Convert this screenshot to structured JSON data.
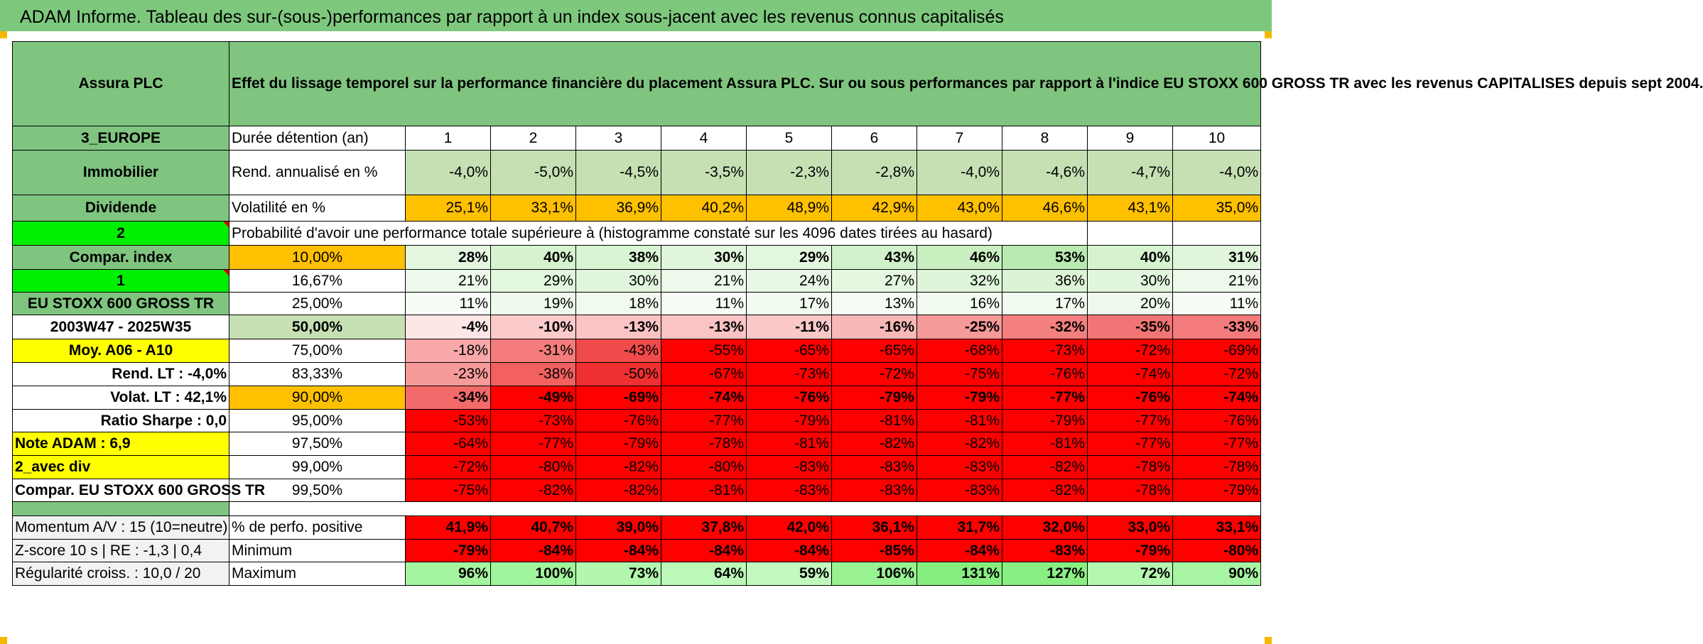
{
  "title": "ADAM Informe. Tableau des sur-(sous-)performances par rapport à un index sous-jacent avec les revenus connus capitalisés",
  "header": {
    "asset": "Assura PLC",
    "description": "Effet du lissage temporel sur la performance financière du placement Assura PLC. Sur ou sous performances par rapport à l'indice EU STOXX 600 GROSS TR avec les revenus CAPITALISES depuis sept 2004."
  },
  "side": {
    "region": "3_EUROPE",
    "sector": "Immobilier",
    "category": "Dividende",
    "num2": "2",
    "compar_index": "Compar. index",
    "num1": "1",
    "index_name": "EU STOXX 600 GROSS TR",
    "period": "2003W47 - 2025W35",
    "moy": "Moy. A06 - A10",
    "rend_lt": "Rend. LT :    -4,0%",
    "volat_lt": "Volat. LT :    42,1%",
    "sharpe": "Ratio Sharpe :     0,0",
    "note": "Note ADAM : 6,9",
    "avec_div": "2_avec div",
    "compar_long": "Compar. EU STOXX 600 GROSS TR",
    "momentum": "Momentum A/V : 15 (10=neutre)",
    "zscore": "Z-score 10 s | RE : -1,3 | 0,4",
    "regularite": "Régularité croiss. : 10,0 / 20"
  },
  "metrics": {
    "duree_label": "Durée détention (an)",
    "years": [
      "1",
      "2",
      "3",
      "4",
      "5",
      "6",
      "7",
      "8",
      "9",
      "10"
    ],
    "rend_label": "Rend. annualisé en %",
    "rend": [
      "-4,0%",
      "-5,0%",
      "-4,5%",
      "-3,5%",
      "-2,3%",
      "-2,8%",
      "-4,0%",
      "-4,6%",
      "-4,7%",
      "-4,0%"
    ],
    "vol_label": "Volatilité en %",
    "vol": [
      "25,1%",
      "33,1%",
      "36,9%",
      "40,2%",
      "48,9%",
      "42,9%",
      "43,0%",
      "46,6%",
      "43,1%",
      "35,0%"
    ],
    "prob_label": "Probabilité d'avoir une performance totale supérieure à (histogramme constaté sur les 4096 dates tirées au hasard)"
  },
  "prob_rows": [
    {
      "threshold": "10,00%",
      "values": [
        "28%",
        "40%",
        "38%",
        "30%",
        "29%",
        "43%",
        "46%",
        "53%",
        "40%",
        "31%"
      ],
      "colors": [
        "#e4f6e0",
        "#d6f3d0",
        "#d9f4d3",
        "#e2f6de",
        "#e3f6df",
        "#d0f1c9",
        "#c9efc1",
        "#b9eab0",
        "#d6f3d0",
        "#e0f5db"
      ]
    },
    {
      "threshold": "16,67%",
      "values": [
        "21%",
        "29%",
        "30%",
        "21%",
        "24%",
        "27%",
        "32%",
        "36%",
        "30%",
        "21%"
      ],
      "colors": [
        "#edf9ea",
        "#e3f6df",
        "#e2f6de",
        "#edf9ea",
        "#e9f7e6",
        "#e5f7e1",
        "#dff5da",
        "#dbf4d5",
        "#e2f6de",
        "#edf9ea"
      ]
    },
    {
      "threshold": "25,00%",
      "values": [
        "11%",
        "19%",
        "18%",
        "11%",
        "17%",
        "13%",
        "16%",
        "17%",
        "20%",
        "11%"
      ],
      "colors": [
        "#f7fcf6",
        "#eefaeb",
        "#f0faed",
        "#f7fcf6",
        "#f1fbef",
        "#f5fcf3",
        "#f2fbf0",
        "#f1fbef",
        "#eefaeb",
        "#f7fcf6"
      ]
    },
    {
      "threshold": "50,00%",
      "values": [
        "-4%",
        "-10%",
        "-13%",
        "-13%",
        "-11%",
        "-16%",
        "-25%",
        "-32%",
        "-35%",
        "-33%"
      ],
      "colors": [
        "#fde6e6",
        "#fbcaca",
        "#fbc3c3",
        "#fbc3c3",
        "#fbc8c8",
        "#f9b8b8",
        "#f69999",
        "#f47f7f",
        "#f37474",
        "#f47b7b"
      ]
    },
    {
      "threshold": "75,00%",
      "values": [
        "-18%",
        "-31%",
        "-43%",
        "-55%",
        "-65%",
        "-65%",
        "-68%",
        "-73%",
        "-72%",
        "-69%"
      ],
      "colors": [
        "#f8a8a8",
        "#f47c7c",
        "#f04a4a",
        "#ff0000",
        "#ff0000",
        "#ff0000",
        "#ff0000",
        "#ff0000",
        "#ff0000",
        "#ff0000"
      ]
    },
    {
      "threshold": "83,33%",
      "values": [
        "-23%",
        "-38%",
        "-50%",
        "-67%",
        "-73%",
        "-72%",
        "-75%",
        "-76%",
        "-74%",
        "-72%"
      ],
      "colors": [
        "#f79a9a",
        "#f26060",
        "#ef3030",
        "#ff0000",
        "#ff0000",
        "#ff0000",
        "#ff0000",
        "#ff0000",
        "#ff0000",
        "#ff0000"
      ]
    },
    {
      "threshold": "90,00%",
      "values": [
        "-34%",
        "-49%",
        "-69%",
        "-74%",
        "-76%",
        "-79%",
        "-79%",
        "-77%",
        "-76%",
        "-74%"
      ],
      "colors": [
        "#f36a6a",
        "#ff0000",
        "#ff0000",
        "#ff0000",
        "#ff0000",
        "#ff0000",
        "#ff0000",
        "#ff0000",
        "#ff0000",
        "#ff0000"
      ]
    },
    {
      "threshold": "95,00%",
      "values": [
        "-53%",
        "-73%",
        "-76%",
        "-77%",
        "-79%",
        "-81%",
        "-81%",
        "-79%",
        "-77%",
        "-76%"
      ],
      "colors": [
        "#ff0000",
        "#ff0000",
        "#ff0000",
        "#ff0000",
        "#ff0000",
        "#ff0000",
        "#ff0000",
        "#ff0000",
        "#ff0000",
        "#ff0000"
      ]
    },
    {
      "threshold": "97,50%",
      "values": [
        "-64%",
        "-77%",
        "-79%",
        "-78%",
        "-81%",
        "-82%",
        "-82%",
        "-81%",
        "-77%",
        "-77%"
      ],
      "colors": [
        "#ff0000",
        "#ff0000",
        "#ff0000",
        "#ff0000",
        "#ff0000",
        "#ff0000",
        "#ff0000",
        "#ff0000",
        "#ff0000",
        "#ff0000"
      ]
    },
    {
      "threshold": "99,00%",
      "values": [
        "-72%",
        "-80%",
        "-82%",
        "-80%",
        "-83%",
        "-83%",
        "-83%",
        "-82%",
        "-78%",
        "-78%"
      ],
      "colors": [
        "#ff0000",
        "#ff0000",
        "#ff0000",
        "#ff0000",
        "#ff0000",
        "#ff0000",
        "#ff0000",
        "#ff0000",
        "#ff0000",
        "#ff0000"
      ]
    },
    {
      "threshold": "99,50%",
      "values": [
        "-75%",
        "-82%",
        "-82%",
        "-81%",
        "-83%",
        "-83%",
        "-83%",
        "-82%",
        "-78%",
        "-79%"
      ],
      "colors": [
        "#ff0000",
        "#ff0000",
        "#ff0000",
        "#ff0000",
        "#ff0000",
        "#ff0000",
        "#ff0000",
        "#ff0000",
        "#ff0000",
        "#ff0000"
      ]
    }
  ],
  "summary": {
    "positive_label": "% de perfo. positive",
    "positive": [
      "41,9%",
      "40,7%",
      "39,0%",
      "37,8%",
      "42,0%",
      "36,1%",
      "31,7%",
      "32,0%",
      "33,0%",
      "33,1%"
    ],
    "min_label": "Minimum",
    "min": [
      "-79%",
      "-84%",
      "-84%",
      "-84%",
      "-84%",
      "-85%",
      "-84%",
      "-83%",
      "-79%",
      "-80%"
    ],
    "max_label": "Maximum",
    "max": [
      "96%",
      "100%",
      "73%",
      "64%",
      "59%",
      "106%",
      "131%",
      "127%",
      "72%",
      "90%"
    ],
    "max_colors": [
      "#a5f5a0",
      "#a0f49b",
      "#b3f7ae",
      "#bcf8b8",
      "#c2f9be",
      "#98f292",
      "#86ee7f",
      "#89ef82",
      "#b5f7b0",
      "#a7f5a2"
    ]
  },
  "colors": {
    "header_green": "#7fc47f",
    "light_green": "#c6e0b4",
    "bright_green": "#00ee00",
    "yellow": "#ffff00",
    "orange": "#ffc000",
    "red": "#ff0000",
    "text_red": "#e0102a"
  }
}
